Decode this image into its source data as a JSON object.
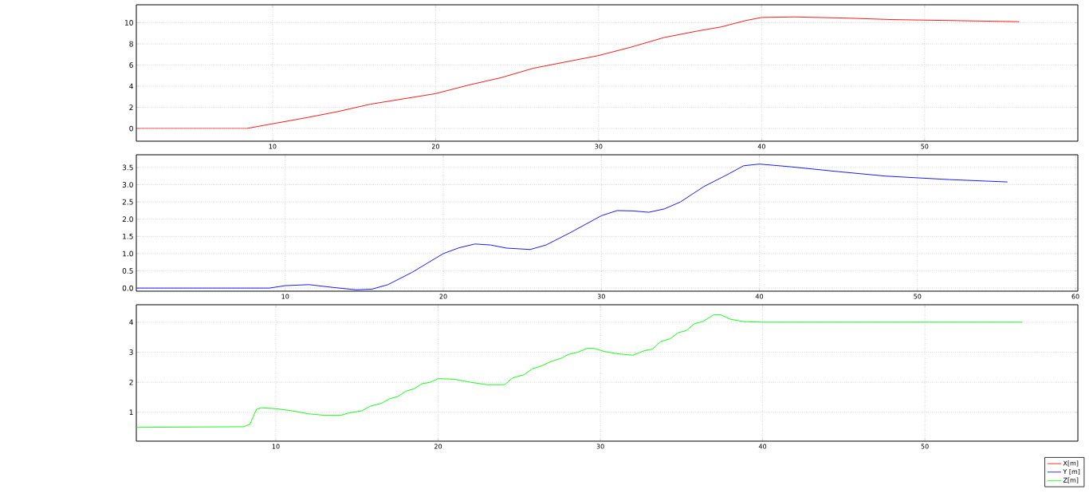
{
  "chart_data": [
    {
      "type": "line",
      "xlim": [
        1.64,
        59.4
      ],
      "ylim": [
        -1.2,
        11.7
      ],
      "xticks": [
        10,
        20,
        30,
        40,
        50
      ],
      "yticks": [
        0,
        2,
        4,
        6,
        8,
        10
      ],
      "grid": true,
      "series": [
        {
          "name": "X[m]",
          "color": "#ff0000",
          "x": [
            1.64,
            8.4,
            10,
            12,
            14,
            16,
            18,
            20,
            22,
            24,
            26,
            28,
            30,
            32,
            34,
            36,
            37.5,
            39,
            40,
            42,
            45,
            48,
            52,
            55.8
          ],
          "values": [
            0,
            0,
            0.45,
            1.0,
            1.6,
            2.3,
            2.8,
            3.3,
            4.1,
            4.8,
            5.7,
            6.3,
            6.9,
            7.7,
            8.6,
            9.2,
            9.6,
            10.2,
            10.5,
            10.55,
            10.45,
            10.3,
            10.2,
            10.1
          ]
        }
      ]
    },
    {
      "type": "line",
      "xlim": [
        0.58,
        60.15
      ],
      "ylim": [
        -0.09,
        3.87
      ],
      "xticks": [
        10,
        20,
        30,
        40,
        50,
        60
      ],
      "yticks": [
        {
          "value": 0,
          "label": "0.0"
        },
        0.5,
        {
          "value": 1,
          "label": "1.0"
        },
        1.5,
        {
          "value": 2,
          "label": "2.0"
        },
        2.5,
        {
          "value": 3,
          "label": "3.0"
        },
        3.5
      ],
      "grid": true,
      "series": [
        {
          "name": "Y [m]",
          "color": "#0000ff",
          "x": [
            0.6,
            5,
            9,
            10,
            11.5,
            13,
            14.5,
            15.5,
            16.5,
            18,
            20,
            21,
            22,
            23,
            24,
            25.5,
            26.5,
            28,
            30,
            31,
            32,
            33,
            34,
            35,
            36.5,
            38,
            39,
            40,
            42,
            45,
            48,
            52,
            55.7
          ],
          "values": [
            0,
            0,
            0,
            0.07,
            0.1,
            0.02,
            -0.05,
            -0.03,
            0.1,
            0.45,
            1.0,
            1.17,
            1.28,
            1.25,
            1.16,
            1.12,
            1.25,
            1.6,
            2.1,
            2.25,
            2.24,
            2.2,
            2.3,
            2.5,
            2.95,
            3.3,
            3.55,
            3.6,
            3.52,
            3.38,
            3.25,
            3.15,
            3.08
          ]
        }
      ]
    },
    {
      "type": "line",
      "xlim": [
        1.4,
        59.43
      ],
      "ylim": [
        0.04,
        4.58
      ],
      "xticks": [
        10,
        20,
        30,
        40,
        50
      ],
      "yticks": [
        1,
        2,
        3,
        4
      ],
      "grid": true,
      "legend": "bottom right",
      "series": [
        {
          "name": "Z[m]",
          "color": "#00ff00",
          "x": [
            1.4,
            8,
            8.4,
            8.8,
            9.1,
            10,
            11,
            12,
            13,
            14,
            14.5,
            15.3,
            15.8,
            16.5,
            17,
            17.5,
            18,
            18.5,
            19,
            19.5,
            20,
            21,
            21.5,
            22,
            23,
            24.1,
            24.6,
            25.3,
            25.8,
            26.4,
            27,
            27.6,
            28,
            28.6,
            29.2,
            29.6,
            30.2,
            31,
            32,
            32.7,
            33.2,
            33.7,
            34.3,
            34.8,
            35.3,
            35.8,
            36.3,
            37,
            37.4,
            38,
            38.8,
            40,
            56
          ],
          "values": [
            0.5,
            0.52,
            0.6,
            1.1,
            1.15,
            1.12,
            1.05,
            0.95,
            0.9,
            0.9,
            0.98,
            1.05,
            1.2,
            1.3,
            1.45,
            1.52,
            1.7,
            1.78,
            1.95,
            2.0,
            2.12,
            2.1,
            2.05,
            2.0,
            1.92,
            1.92,
            2.15,
            2.25,
            2.45,
            2.55,
            2.7,
            2.8,
            2.92,
            3.0,
            3.13,
            3.13,
            3.03,
            2.95,
            2.9,
            3.05,
            3.1,
            3.35,
            3.45,
            3.65,
            3.72,
            3.95,
            4.02,
            4.25,
            4.25,
            4.1,
            4.02,
            4.0,
            4.0
          ]
        }
      ]
    }
  ]
}
